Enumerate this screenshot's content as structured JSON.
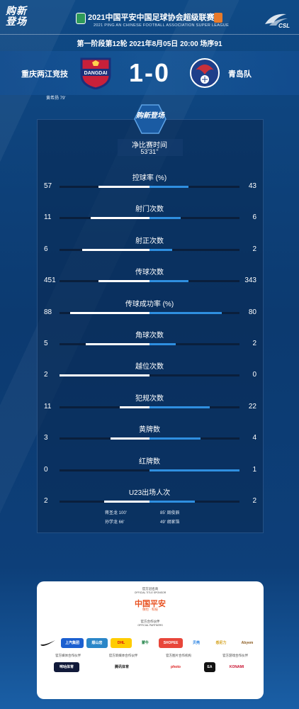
{
  "header": {
    "brand": "购新登场",
    "league_title": "2021中国平安中国足球协会超级联赛",
    "league_subtitle": "2021 PING AN CHINESE FOOTBALL ASSOCIATION SUPER LEAGUE",
    "csl_logo_text": "CSL",
    "match_info": "第一阶段第12轮  2021年8月05日 20:00 场序91"
  },
  "teams": {
    "home_name": "重庆两江竞技",
    "home_crest_text": "DANGDAI",
    "away_name": "青岛队",
    "score": "1-0",
    "home_scorer": "黄希扬  79'"
  },
  "panel": {
    "brand": "购新登场",
    "time_label": "净比赛时间",
    "time_value": "53'31''"
  },
  "stats": [
    {
      "label": "控球率 (%)",
      "home": 57,
      "away": 43,
      "home_frac": 0.57,
      "away_frac": 0.43
    },
    {
      "label": "射门次数",
      "home": 11,
      "away": 6,
      "home_frac": 0.65,
      "away_frac": 0.35
    },
    {
      "label": "射正次数",
      "home": 6,
      "away": 2,
      "home_frac": 0.75,
      "away_frac": 0.25
    },
    {
      "label": "传球次数",
      "home": 451,
      "away": 343,
      "home_frac": 0.57,
      "away_frac": 0.43
    },
    {
      "label": "传球成功率 (%)",
      "home": 88,
      "away": 80,
      "home_frac": 0.88,
      "away_frac": 0.8
    },
    {
      "label": "角球次数",
      "home": 5,
      "away": 2,
      "home_frac": 0.71,
      "away_frac": 0.29
    },
    {
      "label": "越位次数",
      "home": 2,
      "away": 0,
      "home_frac": 1.0,
      "away_frac": 0.0
    },
    {
      "label": "犯规次数",
      "home": 11,
      "away": 22,
      "home_frac": 0.33,
      "away_frac": 0.67
    },
    {
      "label": "黄牌数",
      "home": 3,
      "away": 4,
      "home_frac": 0.43,
      "away_frac": 0.57
    },
    {
      "label": "红牌数",
      "home": 0,
      "away": 1,
      "home_frac": 0.0,
      "away_frac": 1.0
    },
    {
      "label": "U23出场人次",
      "home": 2,
      "away": 2,
      "home_frac": 0.5,
      "away_frac": 0.5
    }
  ],
  "u23": {
    "home_players": [
      "蒋圣龙  100'",
      "孙学龙  66'"
    ],
    "away_players": [
      "85'  周俊辰",
      "49'  胡家箔"
    ]
  },
  "sponsors": {
    "title_sponsor_head": "官方冠名商",
    "title_sponsor_head_en": "OFFICIAL TITLE SPONSOR",
    "title_sponsor": "中国平安",
    "title_sponsor_sub": "保险 · 科技",
    "partners_head": "官方合作伙伴",
    "partners_head_en": "OFFICIAL PARTNERS",
    "partners": [
      "NIKE",
      "上汽集团",
      "顺山岩",
      "DHL",
      "蒙牛",
      "SHOPEE",
      "贝壳",
      "悉尼力",
      "Abyem"
    ],
    "media_head": "官方媒体合作伙伴",
    "digital_head": "官方新媒体合作伙伴",
    "photo_head": "官方图片合作机构",
    "game_head": "官方游戏合作伙伴",
    "media": [
      "咪咕体育",
      "腾讯体育",
      "photo",
      "EA",
      "KONAMI"
    ]
  },
  "colors": {
    "home_bar": "#ffffff",
    "away_bar": "#2f8fe0",
    "background": "#0d3a6e"
  }
}
